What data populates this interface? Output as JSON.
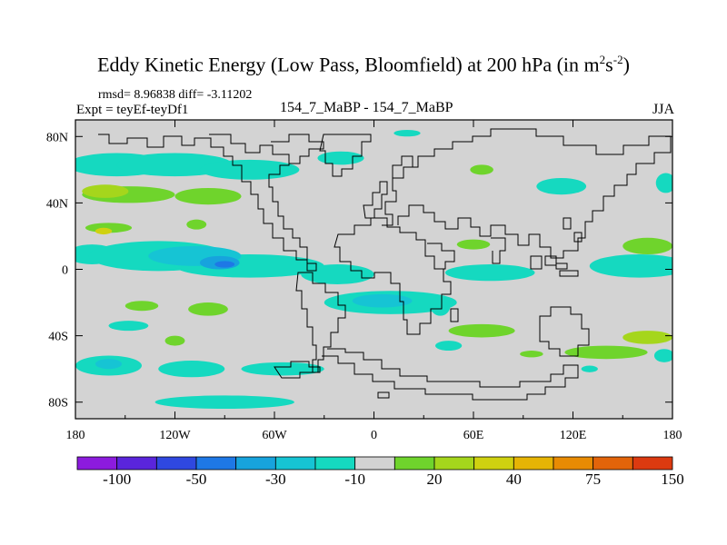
{
  "figure": {
    "title_main": "Eddy Kinetic Energy (Low Pass, Bloomfield) at 200 hPa (in m",
    "title_sup1": "2",
    "title_mid": "s",
    "title_sup2": "-2",
    "title_end": ")",
    "stats": "rmsd= 8.96838 diff= -3.11202",
    "expt": "Expt = teyEf-teyDf1",
    "case": "154_7_MaBP - 154_7_MaBP",
    "season": "JJA"
  },
  "colors": {
    "ocean": "#d3d3d3",
    "coast": "#000000"
  },
  "chart_data": {
    "type": "heatmap",
    "title": "Eddy Kinetic Energy (Low Pass, Bloomfield) at 200 hPa (in m2s-2)",
    "projection": "cylindrical equidistant",
    "x": {
      "label": "longitude",
      "range": [
        -180,
        180
      ],
      "ticks": [
        -180,
        -120,
        -60,
        0,
        60,
        120,
        180
      ],
      "tick_labels": [
        "180",
        "120W",
        "60W",
        "0",
        "60E",
        "120E",
        "180"
      ]
    },
    "y": {
      "label": "latitude",
      "range": [
        -90,
        90
      ],
      "ticks": [
        80,
        40,
        0,
        -40,
        -80
      ],
      "tick_labels": [
        "80N",
        "40N",
        "0",
        "40S",
        "80S"
      ]
    },
    "colorbar": {
      "colors": [
        "#8c1bde",
        "#5a25dc",
        "#2f48e0",
        "#1e78e6",
        "#17a3dd",
        "#16c4d4",
        "#15d9c0",
        "#d3d3d3",
        "#6fd42c",
        "#a5d61c",
        "#cfd110",
        "#e6b405",
        "#e88b03",
        "#e2640a",
        "#dc3a10"
      ],
      "labels": [
        "-100",
        "-50",
        "-30",
        "-10",
        "20",
        "40",
        "75",
        "150"
      ],
      "label_after_bin": [
        1,
        3,
        5,
        7,
        9,
        11,
        13,
        15
      ]
    },
    "blobs": [
      {
        "lon": -155,
        "lat": 63,
        "rlon": 30,
        "rlat": 7,
        "bin": 6
      },
      {
        "lon": -120,
        "lat": 63,
        "rlon": 35,
        "rlat": 7,
        "bin": 6
      },
      {
        "lon": -75,
        "lat": 60,
        "rlon": 30,
        "rlat": 6,
        "bin": 6
      },
      {
        "lon": -20,
        "lat": 67,
        "rlon": 14,
        "rlat": 4,
        "bin": 6
      },
      {
        "lon": -148,
        "lat": 45,
        "rlon": 28,
        "rlat": 5,
        "bin": 8
      },
      {
        "lon": -162,
        "lat": 47,
        "rlon": 14,
        "rlat": 4,
        "bin": 9
      },
      {
        "lon": -100,
        "lat": 44,
        "rlon": 20,
        "rlat": 5,
        "bin": 8
      },
      {
        "lon": 65,
        "lat": 60,
        "rlon": 7,
        "rlat": 3,
        "bin": 8
      },
      {
        "lon": 113,
        "lat": 50,
        "rlon": 15,
        "rlat": 5,
        "bin": 6
      },
      {
        "lon": 176,
        "lat": 52,
        "rlon": 6,
        "rlat": 6,
        "bin": 6
      },
      {
        "lon": -160,
        "lat": 25,
        "rlon": 14,
        "rlat": 3,
        "bin": 8
      },
      {
        "lon": -163,
        "lat": 23,
        "rlon": 5,
        "rlat": 2,
        "bin": 10
      },
      {
        "lon": -107,
        "lat": 27,
        "rlon": 6,
        "rlat": 3,
        "bin": 8
      },
      {
        "lon": -170,
        "lat": 9,
        "rlon": 15,
        "rlat": 6,
        "bin": 6
      },
      {
        "lon": -130,
        "lat": 8,
        "rlon": 42,
        "rlat": 9,
        "bin": 6
      },
      {
        "lon": -75,
        "lat": 2,
        "rlon": 45,
        "rlat": 7,
        "bin": 6
      },
      {
        "lon": -22,
        "lat": -3,
        "rlon": 22,
        "rlat": 6,
        "bin": 6
      },
      {
        "lon": -108,
        "lat": 8,
        "rlon": 28,
        "rlat": 6,
        "bin": 5
      },
      {
        "lon": -93,
        "lat": 4,
        "rlon": 12,
        "rlat": 4,
        "bin": 4
      },
      {
        "lon": -90,
        "lat": 3,
        "rlon": 6,
        "rlat": 2,
        "bin": 3
      },
      {
        "lon": 10,
        "lat": -20,
        "rlon": 40,
        "rlat": 7,
        "bin": 6
      },
      {
        "lon": 5,
        "lat": -19,
        "rlon": 18,
        "rlat": 4,
        "bin": 5
      },
      {
        "lon": 40,
        "lat": -22,
        "rlon": 6,
        "rlat": 6,
        "bin": 6
      },
      {
        "lon": 60,
        "lat": 15,
        "rlon": 10,
        "rlat": 3,
        "bin": 8
      },
      {
        "lon": 70,
        "lat": -2,
        "rlon": 27,
        "rlat": 5,
        "bin": 6
      },
      {
        "lon": 160,
        "lat": 2,
        "rlon": 30,
        "rlat": 7,
        "bin": 6
      },
      {
        "lon": 165,
        "lat": 14,
        "rlon": 15,
        "rlat": 5,
        "bin": 8
      },
      {
        "lon": -140,
        "lat": -22,
        "rlon": 10,
        "rlat": 3,
        "bin": 8
      },
      {
        "lon": -100,
        "lat": -24,
        "rlon": 12,
        "rlat": 4,
        "bin": 8
      },
      {
        "lon": -148,
        "lat": -34,
        "rlon": 12,
        "rlat": 3,
        "bin": 6
      },
      {
        "lon": -160,
        "lat": -58,
        "rlon": 20,
        "rlat": 6,
        "bin": 6
      },
      {
        "lon": -160,
        "lat": -57,
        "rlon": 8,
        "rlat": 3,
        "bin": 5
      },
      {
        "lon": -110,
        "lat": -60,
        "rlon": 20,
        "rlat": 5,
        "bin": 6
      },
      {
        "lon": -55,
        "lat": -60,
        "rlon": 25,
        "rlat": 4,
        "bin": 6
      },
      {
        "lon": -120,
        "lat": -43,
        "rlon": 6,
        "rlat": 3,
        "bin": 8
      },
      {
        "lon": 65,
        "lat": -37,
        "rlon": 20,
        "rlat": 4,
        "bin": 8
      },
      {
        "lon": 45,
        "lat": -46,
        "rlon": 8,
        "rlat": 3,
        "bin": 6
      },
      {
        "lon": 95,
        "lat": -51,
        "rlon": 7,
        "rlat": 2,
        "bin": 8
      },
      {
        "lon": 140,
        "lat": -50,
        "rlon": 25,
        "rlat": 4,
        "bin": 8
      },
      {
        "lon": 165,
        "lat": -41,
        "rlon": 15,
        "rlat": 4,
        "bin": 9
      },
      {
        "lon": 175,
        "lat": -52,
        "rlon": 6,
        "rlat": 4,
        "bin": 6
      },
      {
        "lon": 130,
        "lat": -60,
        "rlon": 5,
        "rlat": 2,
        "bin": 6
      },
      {
        "lon": -90,
        "lat": -80,
        "rlon": 42,
        "rlat": 4,
        "bin": 6
      },
      {
        "lon": 20,
        "lat": 82,
        "rlon": 8,
        "rlat": 2,
        "bin": 6
      }
    ]
  }
}
